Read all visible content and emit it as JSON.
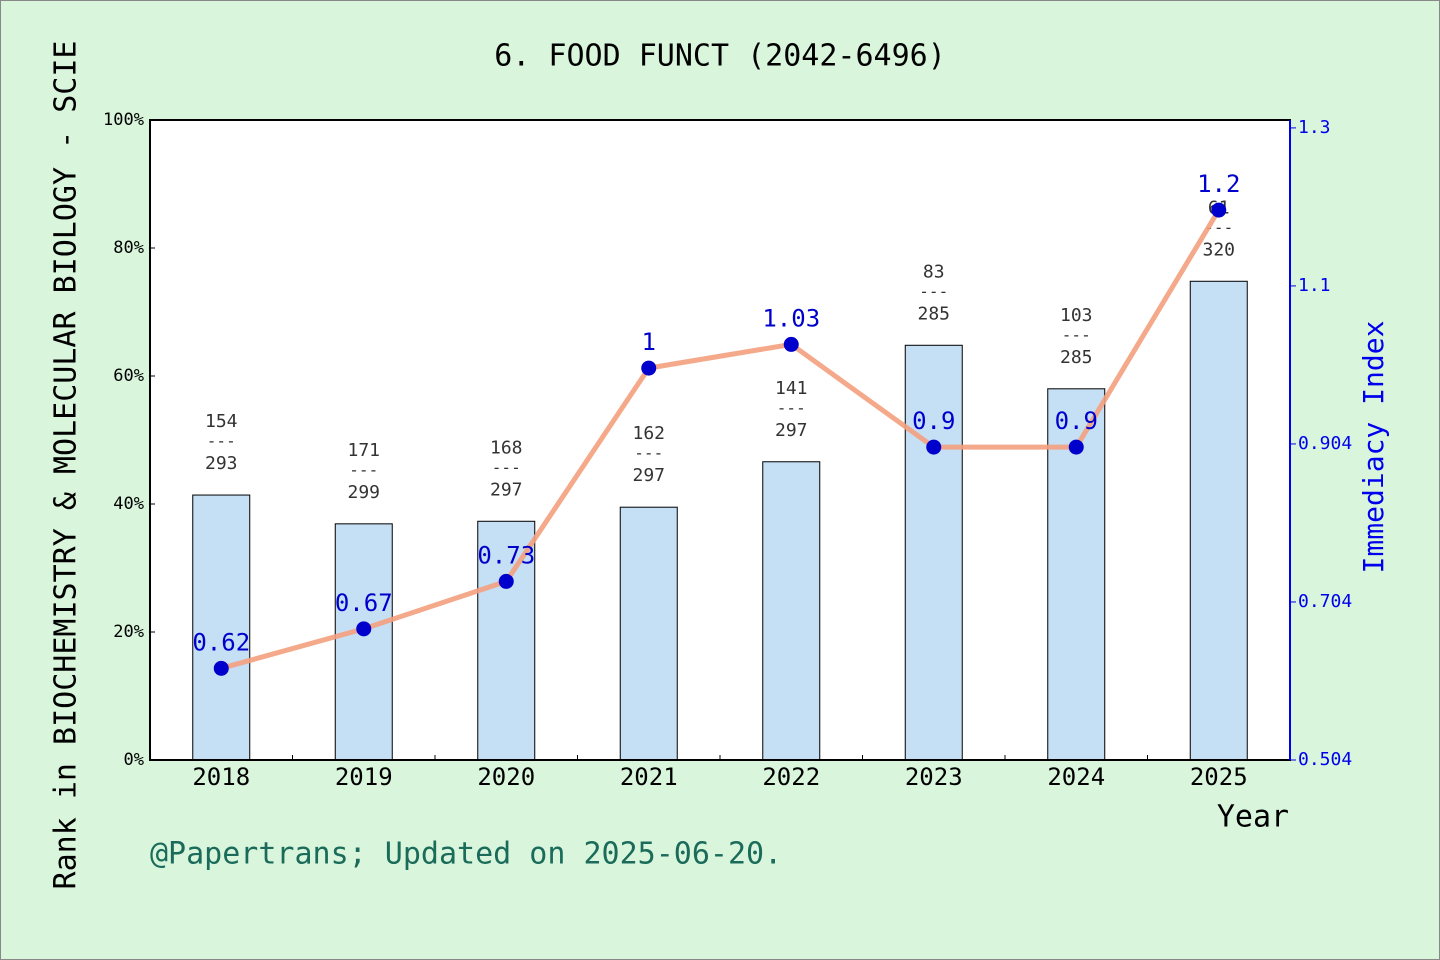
{
  "chart_data": {
    "type": "bar_line",
    "title": "6. FOOD FUNCT (2042-6496)",
    "x_label": "Year",
    "y_label": "Rank in BIOCHEMISTRY & MOLECULAR BIOLOGY - SCIE",
    "y2_label": "Immediacy Index",
    "footnote": "@Papertrans; Updated on 2025-06-20.",
    "categories": [
      "2018",
      "2019",
      "2020",
      "2021",
      "2022",
      "2023",
      "2024",
      "2025"
    ],
    "series": [
      {
        "type": "bar",
        "color": "#c5dff5",
        "values": [
          41.4,
          36.9,
          37.3,
          39.5,
          46.6,
          64.8,
          58.0,
          74.8
        ]
      },
      {
        "type": "line",
        "axis": "y2",
        "color": "#f4a07e",
        "marker_color": "#0000cc",
        "values": [
          0.62,
          0.67,
          0.73,
          1,
          1.03,
          0.9,
          0.9,
          1.2
        ]
      }
    ],
    "ranks": [
      154,
      171,
      168,
      162,
      141,
      83,
      103,
      61
    ],
    "totals": [
      293,
      299,
      297,
      297,
      297,
      285,
      285,
      320
    ],
    "rank_separator": "---",
    "ylim": [
      0,
      100
    ],
    "yticks": [
      {
        "value": 0,
        "label": "0%"
      },
      {
        "value": 20,
        "label": "20%"
      },
      {
        "value": 40,
        "label": "40%"
      },
      {
        "value": 60,
        "label": "60%"
      },
      {
        "value": 80,
        "label": "80%"
      },
      {
        "value": 100,
        "label": "100%"
      }
    ],
    "y2lim": [
      0.504,
      1.314
    ],
    "y2ticks": [
      0.504,
      0.704,
      0.904,
      {
        "value": 1.104,
        "label": "1.1"
      },
      {
        "value": 1.304,
        "label": "1.3"
      }
    ]
  }
}
